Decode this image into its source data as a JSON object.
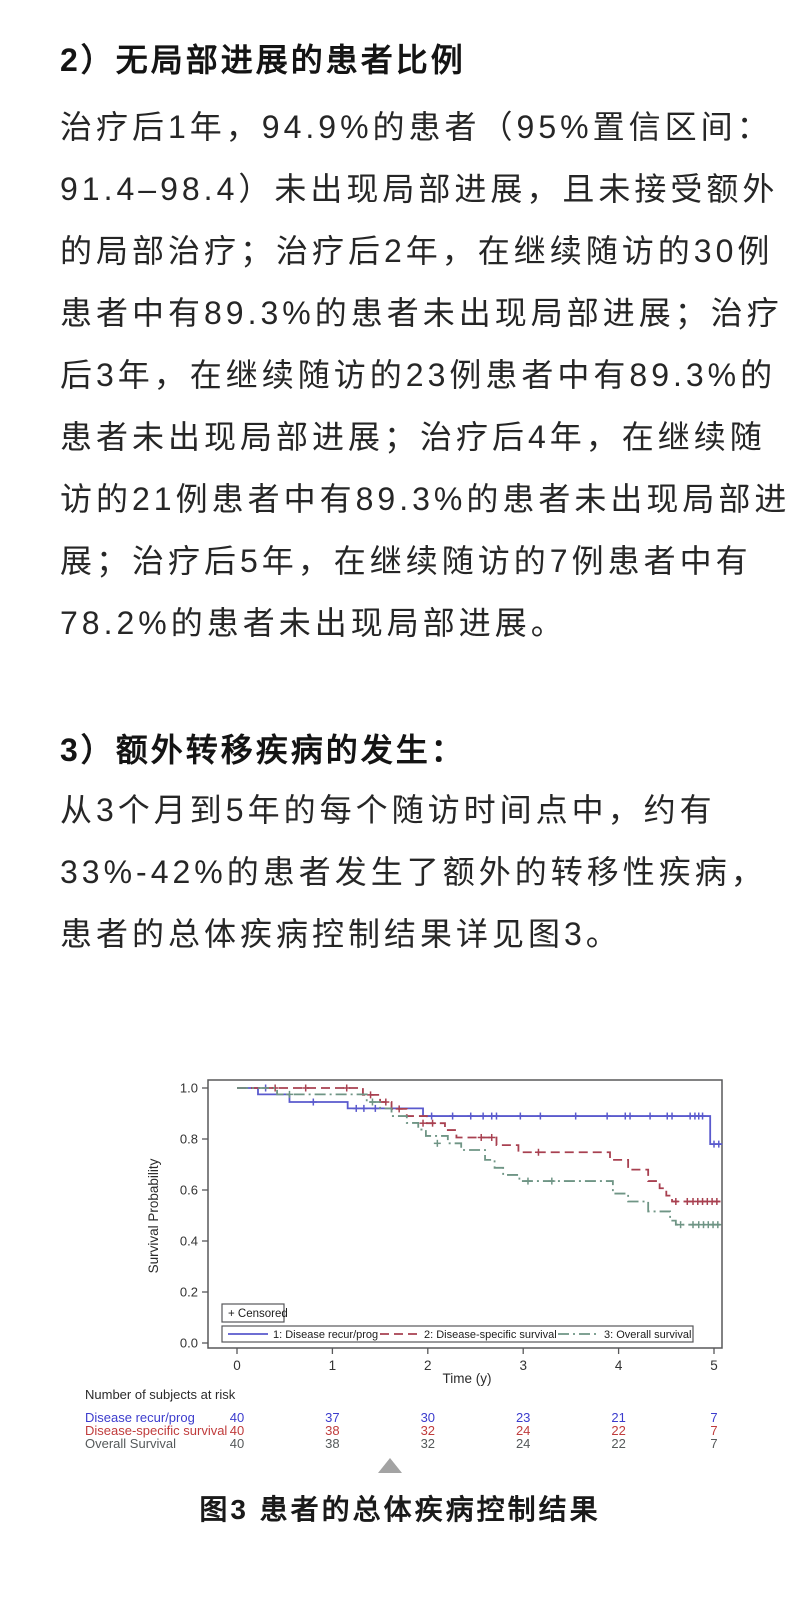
{
  "page": {
    "background": "#ffffff"
  },
  "article": {
    "heading_2": "2）无局部进展的患者比例",
    "paragraph_2_lines": [
      "治疗后1年，94.9%的患者（95%置信区间：",
      "91.4–98.4）未出现局部进展，且未接受额外",
      "的局部治疗；治疗后2年，在继续随访的30例",
      "患者中有89.3%的患者未出现局部进展；治疗",
      "后3年，在继续随访的23例患者中有89.3%的",
      "患者未出现局部进展；治疗后4年，在继续随",
      "访的21例患者中有89.3%的患者未出现局部进",
      "展；治疗后5年，在继续随访的7例患者中有",
      "78.2%的患者未出现局部进展。"
    ],
    "heading_3": "3）额外转移疾病的发生：",
    "paragraph_3_lines": [
      "从3个月到5年的每个随访时间点中，约有",
      "33%-42%的患者发生了额外的转移性疾病，",
      "患者的总体疾病控制结果详见图3。"
    ],
    "figure_caption": "图3  患者的总体疾病控制结果"
  },
  "chart_data": {
    "type": "line",
    "subtype": "kaplan-meier-step",
    "title": "",
    "xlabel": "Time (y)",
    "ylabel": "Survival Probability",
    "xlim": [
      0,
      5.1
    ],
    "ylim": [
      0.0,
      1.0
    ],
    "xticks": [
      "0",
      "1",
      "2",
      "3",
      "4",
      "5"
    ],
    "yticks": [
      {
        "label": "0.0",
        "value": 0.0
      },
      {
        "label": "0.2",
        "value": 0.2
      },
      {
        "label": "0.4",
        "value": 0.4
      },
      {
        "label": "0.6",
        "value": 0.6
      },
      {
        "label": "0.8",
        "value": 0.8
      },
      {
        "label": "1.0",
        "value": 1.0
      }
    ],
    "grid": false,
    "censored_legend": "+ Censored",
    "axis_color": "#58585a",
    "tick_label_color": "#333333",
    "series": [
      {
        "name": "1: Disease recur/prog",
        "color": "#5a5acd",
        "dash": "solid",
        "points": [
          [
            0,
            1.0
          ],
          [
            0.22,
            0.975
          ],
          [
            0.55,
            0.945
          ],
          [
            1.16,
            0.92
          ],
          [
            1.95,
            0.89
          ],
          [
            4.96,
            0.78
          ],
          [
            5.08,
            0.78
          ]
        ],
        "censors": [
          [
            0.3,
            1.0
          ],
          [
            0.8,
            0.945
          ],
          [
            1.25,
            0.92
          ],
          [
            1.33,
            0.92
          ],
          [
            1.45,
            0.92
          ],
          [
            2.04,
            0.89
          ],
          [
            2.26,
            0.89
          ],
          [
            2.45,
            0.89
          ],
          [
            2.58,
            0.89
          ],
          [
            2.67,
            0.89
          ],
          [
            2.72,
            0.89
          ],
          [
            2.97,
            0.89
          ],
          [
            3.18,
            0.89
          ],
          [
            3.55,
            0.89
          ],
          [
            3.88,
            0.89
          ],
          [
            4.07,
            0.89
          ],
          [
            4.12,
            0.89
          ],
          [
            4.33,
            0.89
          ],
          [
            4.51,
            0.89
          ],
          [
            4.56,
            0.89
          ],
          [
            4.75,
            0.89
          ],
          [
            4.8,
            0.89
          ],
          [
            4.84,
            0.89
          ],
          [
            4.88,
            0.89
          ],
          [
            5.0,
            0.78
          ],
          [
            5.05,
            0.78
          ]
        ]
      },
      {
        "name": "2: Disease-specific survival",
        "color": "#a84050",
        "dash": "dashed",
        "points": [
          [
            0,
            1.0
          ],
          [
            1.32,
            0.973
          ],
          [
            1.5,
            0.945
          ],
          [
            1.62,
            0.918
          ],
          [
            1.78,
            0.89
          ],
          [
            1.99,
            0.862
          ],
          [
            2.18,
            0.835
          ],
          [
            2.3,
            0.806
          ],
          [
            2.72,
            0.776
          ],
          [
            2.95,
            0.748
          ],
          [
            3.91,
            0.718
          ],
          [
            4.1,
            0.68
          ],
          [
            4.31,
            0.635
          ],
          [
            4.43,
            0.607
          ],
          [
            4.5,
            0.578
          ],
          [
            4.56,
            0.555
          ],
          [
            5.08,
            0.555
          ]
        ],
        "censors": [
          [
            0.4,
            1.0
          ],
          [
            0.72,
            1.0
          ],
          [
            1.15,
            1.0
          ],
          [
            1.4,
            0.973
          ],
          [
            1.56,
            0.945
          ],
          [
            1.7,
            0.918
          ],
          [
            1.95,
            0.862
          ],
          [
            2.05,
            0.862
          ],
          [
            2.56,
            0.806
          ],
          [
            2.67,
            0.806
          ],
          [
            3.16,
            0.748
          ],
          [
            4.6,
            0.555
          ],
          [
            4.72,
            0.555
          ],
          [
            4.78,
            0.555
          ],
          [
            4.83,
            0.555
          ],
          [
            4.88,
            0.555
          ],
          [
            4.93,
            0.555
          ],
          [
            4.98,
            0.555
          ],
          [
            5.03,
            0.555
          ]
        ]
      },
      {
        "name": "3: Overall survival",
        "color": "#6f9585",
        "dash": "dashdot",
        "points": [
          [
            0,
            1.0
          ],
          [
            0.42,
            0.975
          ],
          [
            1.36,
            0.945
          ],
          [
            1.5,
            0.92
          ],
          [
            1.62,
            0.89
          ],
          [
            1.78,
            0.863
          ],
          [
            1.9,
            0.837
          ],
          [
            1.98,
            0.812
          ],
          [
            2.21,
            0.783
          ],
          [
            2.35,
            0.757
          ],
          [
            2.6,
            0.718
          ],
          [
            2.7,
            0.687
          ],
          [
            2.79,
            0.659
          ],
          [
            2.96,
            0.635
          ],
          [
            3.94,
            0.586
          ],
          [
            4.1,
            0.555
          ],
          [
            4.31,
            0.516
          ],
          [
            4.54,
            0.48
          ],
          [
            4.6,
            0.464
          ],
          [
            5.08,
            0.464
          ]
        ],
        "censors": [
          [
            0.55,
            0.975
          ],
          [
            1.42,
            0.945
          ],
          [
            2.1,
            0.783
          ],
          [
            3.05,
            0.635
          ],
          [
            3.3,
            0.635
          ],
          [
            4.65,
            0.464
          ],
          [
            4.78,
            0.464
          ],
          [
            4.84,
            0.464
          ],
          [
            4.89,
            0.464
          ],
          [
            4.94,
            0.464
          ],
          [
            4.99,
            0.464
          ],
          [
            5.04,
            0.464
          ]
        ]
      }
    ],
    "at_risk": {
      "title": "Number of subjects at risk",
      "title_color": "#2a2a2a",
      "times": [
        0,
        1,
        2,
        3,
        4,
        5
      ],
      "rows": [
        {
          "label": "Disease recur/prog",
          "color": "#3c3ccd",
          "values": [
            40,
            37,
            30,
            23,
            21,
            7
          ]
        },
        {
          "label": "Disease-specific survival",
          "color": "#c03c3c",
          "values": [
            40,
            38,
            32,
            24,
            22,
            7
          ]
        },
        {
          "label": "Overall Survival",
          "color": "#55595a",
          "values": [
            40,
            38,
            32,
            24,
            22,
            7
          ]
        }
      ]
    },
    "legend_position": "bottom-inside"
  }
}
